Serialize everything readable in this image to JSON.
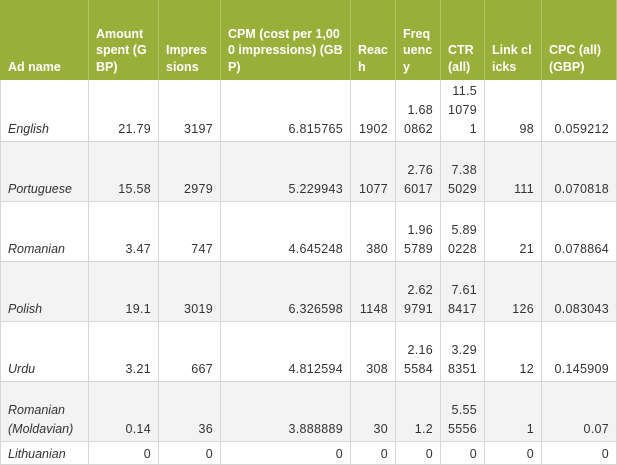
{
  "colors": {
    "header_bg": "#9aaf3a",
    "header_text": "#ffffff",
    "stripe": "#f3f3f3"
  },
  "table": {
    "headers": {
      "ad_name": "Ad name",
      "amount_spent": "Amount spent (GBP)",
      "impressions": "Impressions",
      "cpm": "CPM (cost per 1,000 impressions) (GBP)",
      "reach": "Reach",
      "frequency": "Frequency",
      "ctr": "CTR (all)",
      "link_clicks": "Link clicks",
      "cpc": "CPC (all) (GBP)"
    },
    "rows": [
      {
        "ad_name": "English",
        "amount_spent": "21.79",
        "impressions": "3197",
        "cpm": "6.815765",
        "reach": "1902",
        "frequency": "1.680862",
        "ctr": "11.510791",
        "link_clicks": "98",
        "cpc": "0.059212"
      },
      {
        "ad_name": "Portuguese",
        "amount_spent": "15.58",
        "impressions": "2979",
        "cpm": "5.229943",
        "reach": "1077",
        "frequency": "2.766017",
        "ctr": "7.385029",
        "link_clicks": "111",
        "cpc": "0.070818"
      },
      {
        "ad_name": "Romanian",
        "amount_spent": "3.47",
        "impressions": "747",
        "cpm": "4.645248",
        "reach": "380",
        "frequency": "1.965789",
        "ctr": "5.890228",
        "link_clicks": "21",
        "cpc": "0.078864"
      },
      {
        "ad_name": "Polish",
        "amount_spent": "19.1",
        "impressions": "3019",
        "cpm": "6.326598",
        "reach": "1148",
        "frequency": "2.629791",
        "ctr": "7.618417",
        "link_clicks": "126",
        "cpc": "0.083043"
      },
      {
        "ad_name": "Urdu",
        "amount_spent": "3.21",
        "impressions": "667",
        "cpm": "4.812594",
        "reach": "308",
        "frequency": "2.165584",
        "ctr": "3.298351",
        "link_clicks": "12",
        "cpc": "0.145909"
      },
      {
        "ad_name": "Romanian (Moldavian)",
        "amount_spent": "0.14",
        "impressions": "36",
        "cpm": "3.888889",
        "reach": "30",
        "frequency": "1.2",
        "ctr": "5.555556",
        "link_clicks": "1",
        "cpc": "0.07"
      },
      {
        "ad_name": "Lithuanian",
        "amount_spent": "0",
        "impressions": "0",
        "cpm": "0",
        "reach": "0",
        "frequency": "0",
        "ctr": "0",
        "link_clicks": "0",
        "cpc": "0"
      }
    ]
  }
}
